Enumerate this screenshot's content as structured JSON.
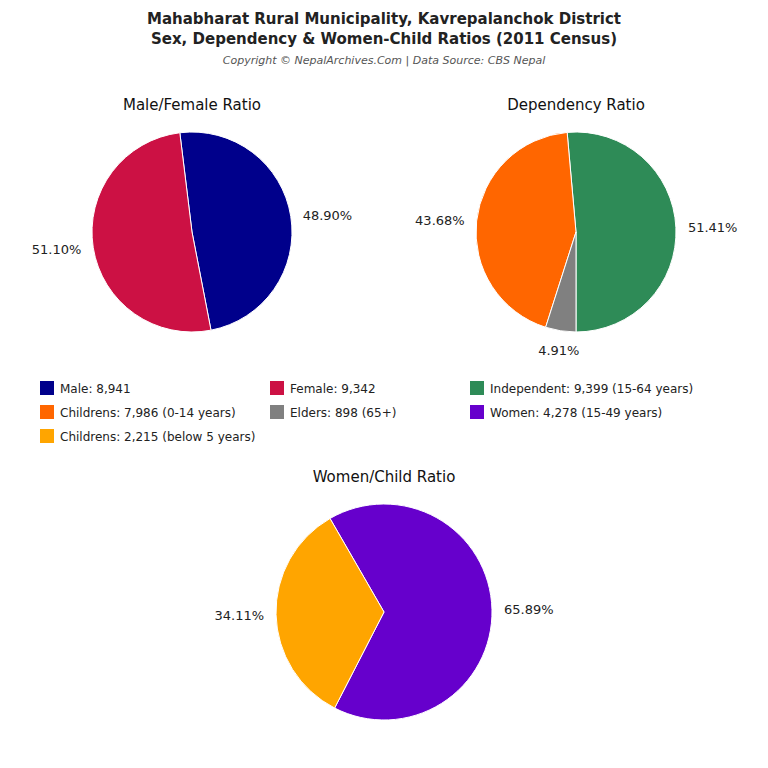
{
  "title": "Mahabharat Rural Municipality, Kavrepalanchok District",
  "subtitle": "Sex, Dependency & Women-Child Ratios (2011 Census)",
  "annotations": [
    "Copyright © NepalArchives.Com | Data Source: CBS Nepal"
  ],
  "chart_data": [
    {
      "type": "pie",
      "title": "Male/Female Ratio",
      "categories": [
        "Male: 8,941",
        "Female: 9,342"
      ],
      "values": [
        48.9,
        51.1
      ],
      "value_labels": [
        "48.90%",
        "51.10%"
      ],
      "colors": [
        "#00008B",
        "#CC1144"
      ],
      "data_labels": true,
      "legend": "bottom"
    },
    {
      "type": "pie",
      "title": "Dependency Ratio",
      "categories": [
        "Independent: 9,399 (15-64 years)",
        "Childrens: 7,986 (0-14 years)",
        "Elders: 898 (65+)"
      ],
      "values": [
        51.41,
        43.68,
        4.91
      ],
      "value_labels": [
        "51.41%",
        "43.68%",
        "4.91%"
      ],
      "colors": [
        "#2E8B57",
        "#FF6600",
        "#808080"
      ],
      "data_labels": true,
      "legend": "bottom"
    },
    {
      "type": "pie",
      "title": "Women/Child Ratio",
      "categories": [
        "Women: 4,278 (15-49 years)",
        "Childrens: 2,215 (below 5 years)"
      ],
      "values": [
        65.89,
        34.11
      ],
      "value_labels": [
        "65.89%",
        "34.11%"
      ],
      "colors": [
        "#6600CC",
        "#FFA500"
      ],
      "data_labels": true,
      "legend": "top"
    }
  ]
}
